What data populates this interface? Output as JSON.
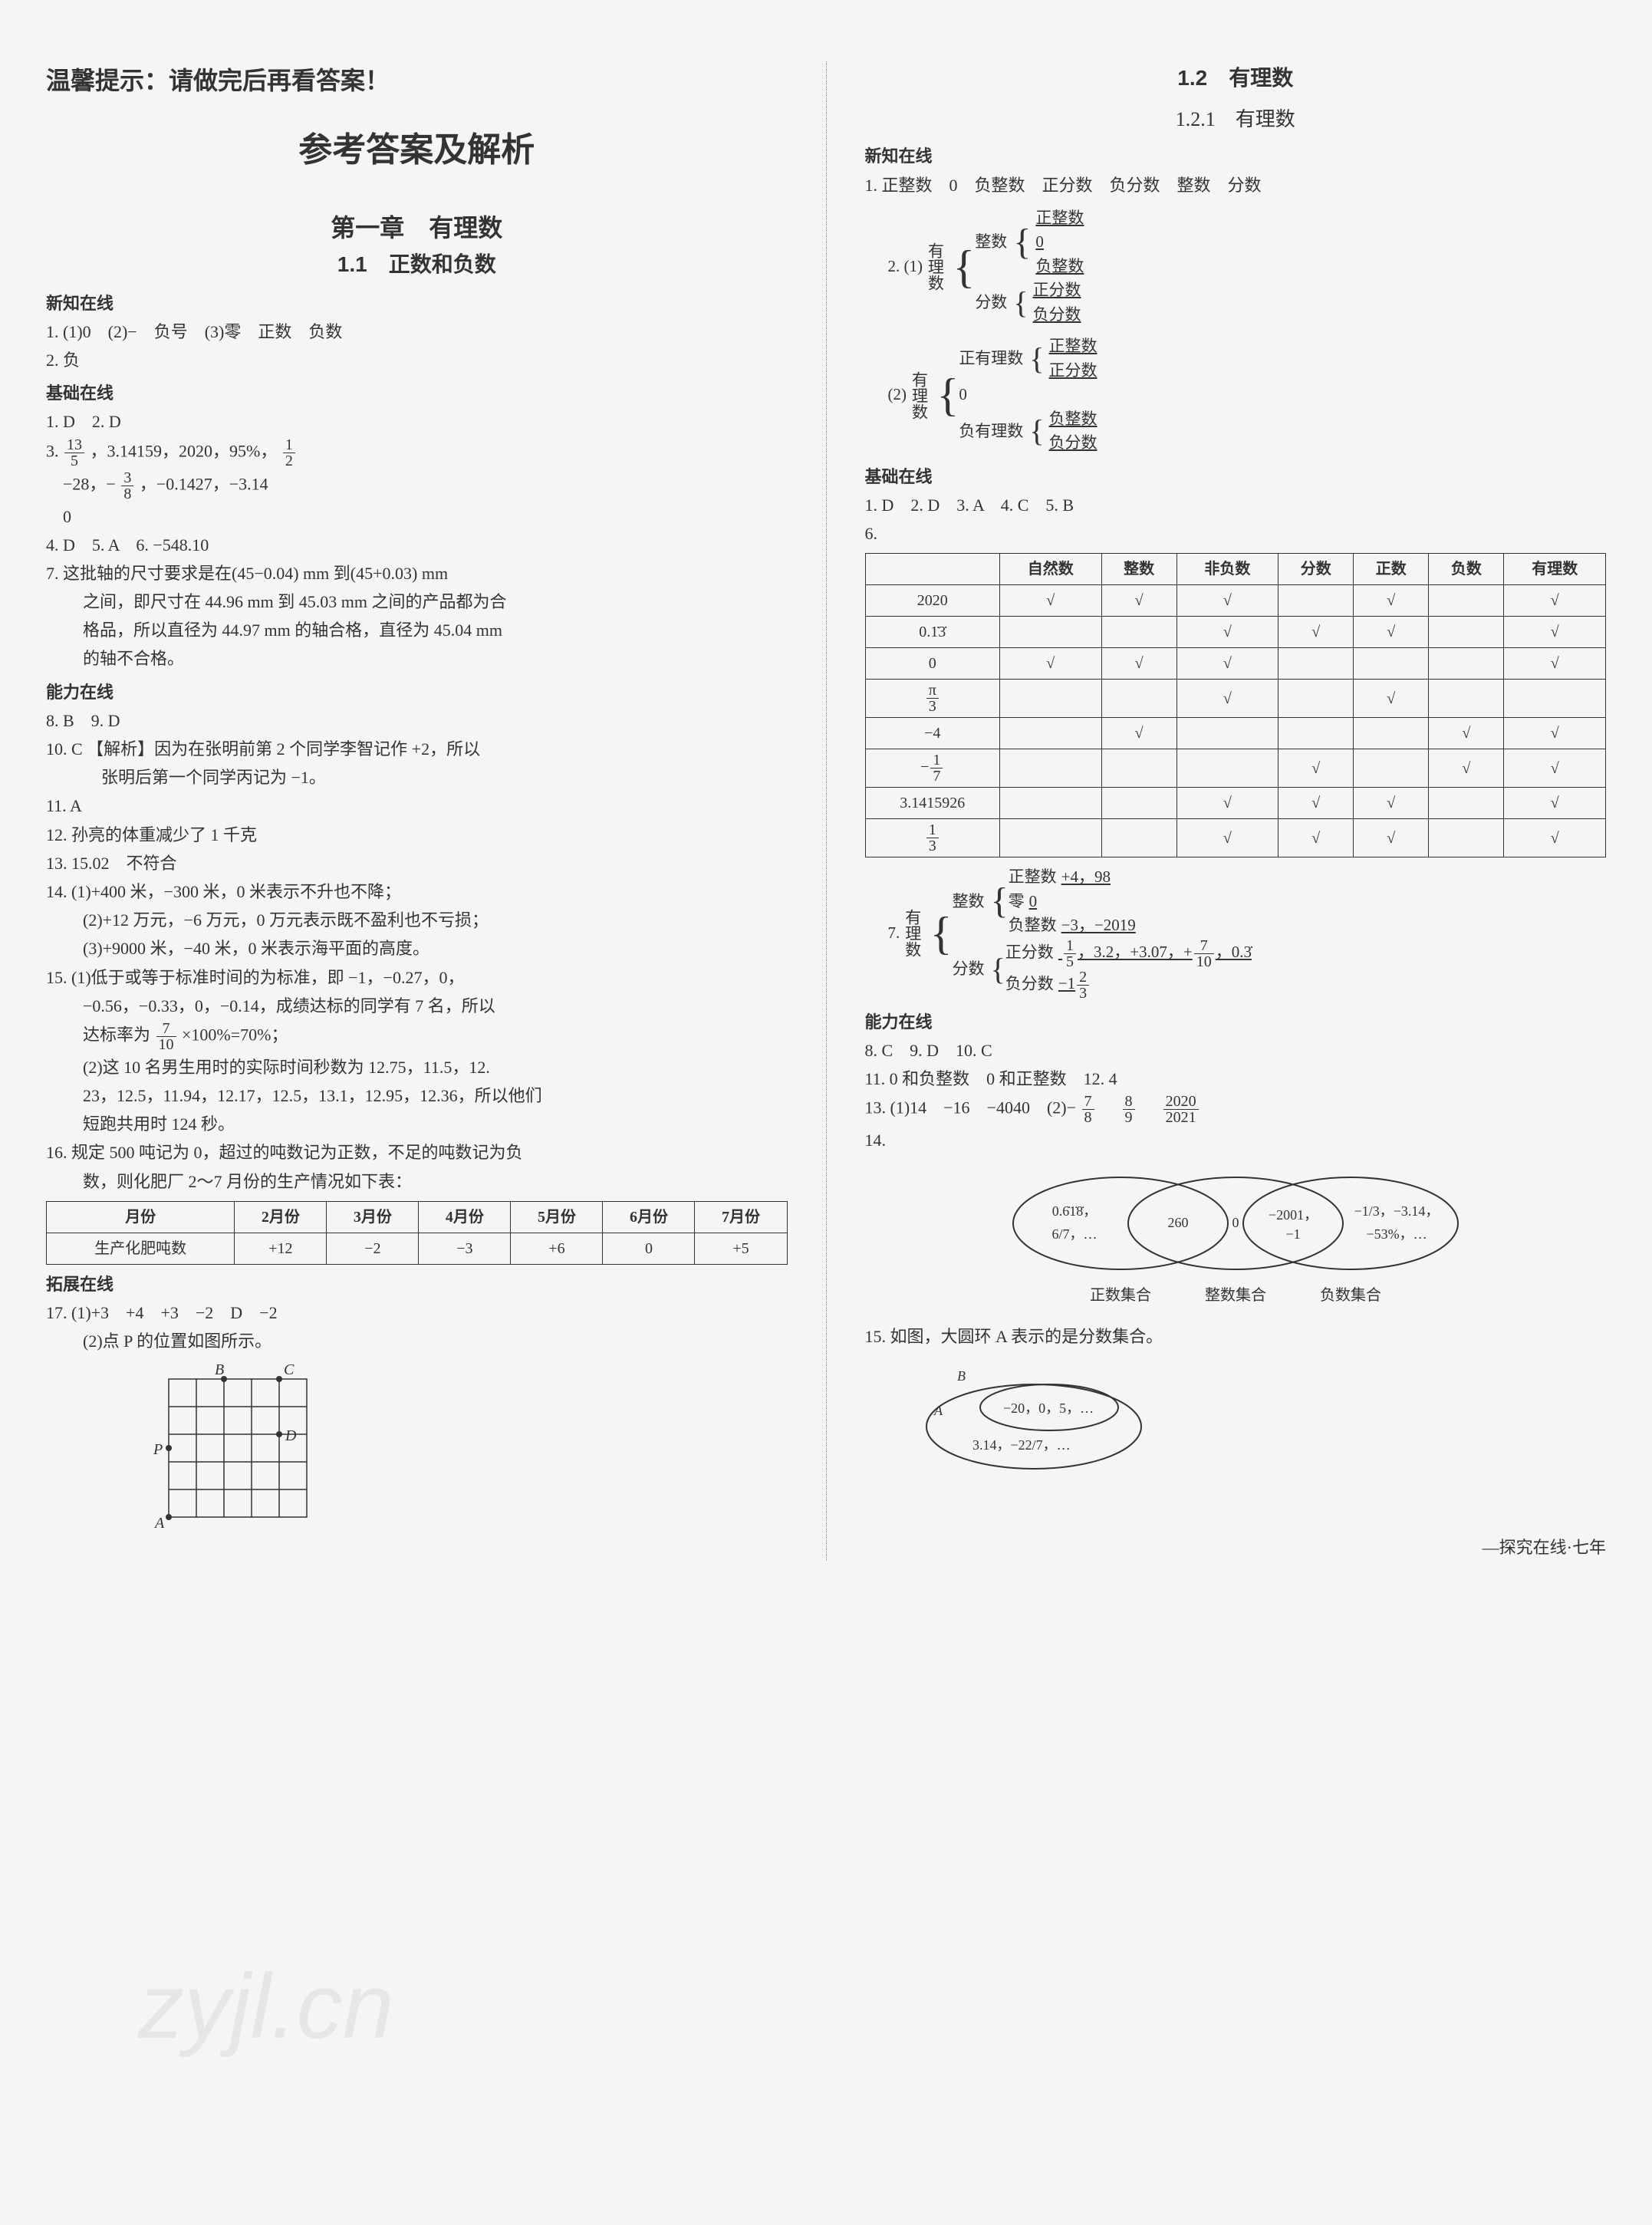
{
  "warning": "温馨提示：请做完后再看答案！",
  "main_title": "参考答案及解析",
  "chapter": "第一章　有理数",
  "section_1_1": "1.1　正数和负数",
  "left": {
    "h_xinzhi": "新知在线",
    "l1": "1. (1)0　(2)−　负号　(3)零　正数　负数",
    "l2": "2. 负",
    "h_jichu": "基础在线",
    "l3": "1. D　2. D",
    "l3b_prefix": "3. ",
    "l3b_rest": "，3.14159，2020，95%，",
    "l3c_prefix": "　−28，−",
    "l3c_rest": "，−0.1427，−3.14",
    "l3d": "　0",
    "l4": "4. D　5. A　6. −548.10",
    "l7a": "7. 这批轴的尺寸要求是在(45−0.04) mm 到(45+0.03) mm",
    "l7b": "之间，即尺寸在 44.96 mm 到 45.03 mm 之间的产品都为合",
    "l7c": "格品，所以直径为 44.97 mm 的轴合格，直径为 45.04 mm",
    "l7d": "的轴不合格。",
    "h_nengli": "能力在线",
    "l8": "8. B　9. D",
    "l10a": "10. C 【解析】因为在张明前第 2 个同学李智记作 +2，所以",
    "l10b": "张明后第一个同学丙记为 −1。",
    "l11": "11. A",
    "l12": "12. 孙亮的体重减少了 1 千克",
    "l13": "13. 15.02　不符合",
    "l14a": "14. (1)+400 米，−300 米，0 米表示不升也不降；",
    "l14b": "(2)+12 万元，−6 万元，0 万元表示既不盈利也不亏损；",
    "l14c": "(3)+9000 米，−40 米，0 米表示海平面的高度。",
    "l15a": "15. (1)低于或等于标准时间的为标准，即 −1，−0.27，0，",
    "l15b": "−0.56，−0.33，0，−0.14，成绩达标的同学有 7 名，所以",
    "l15c_prefix": "达标率为",
    "l15c_rest": "×100%=70%；",
    "l15d": "(2)这 10 名男生用时的实际时间秒数为 12.75，11.5，12.",
    "l15e": "23，12.5，11.94，12.17，12.5，13.1，12.95，12.36，所以他们",
    "l15f": "短跑共用时 124 秒。",
    "l16a": "16. 规定 500 吨记为 0，超过的吨数记为正数，不足的吨数记为负",
    "l16b": "数，则化肥厂 2～7 月份的生产情况如下表：",
    "table16": {
      "headers": [
        "月份",
        "2月份",
        "3月份",
        "4月份",
        "5月份",
        "6月份",
        "7月份"
      ],
      "row_label": "生产化肥吨数",
      "values": [
        "+12",
        "−2",
        "−3",
        "+6",
        "0",
        "+5"
      ]
    },
    "h_tuozhan": "拓展在线",
    "l17a": "17. (1)+3　+4　+3　−2　D　−2",
    "l17b": "(2)点 P 的位置如图所示。",
    "grid_labels": {
      "A": "A",
      "B": "B",
      "C": "C",
      "D": "D",
      "P": "P"
    }
  },
  "right": {
    "section_1_2": "1.2　有理数",
    "subsection": "1.2.1　有理数",
    "h_xinzhi": "新知在线",
    "l1": "1. 正整数　0　负整数　正分数　负分数　整数　分数",
    "tree2_prefix": "2. (1)",
    "tree2": {
      "root": "有理数",
      "b1": "整数",
      "b1a": "正整数",
      "b1b": "0",
      "b1c": "负整数",
      "b2": "分数",
      "b2a": "正分数",
      "b2b": "负分数"
    },
    "tree2b_prefix": "(2)",
    "tree2b": {
      "root": "有理数",
      "b1": "正有理数",
      "b1a": "正整数",
      "b1b": "正分数",
      "b2": "0",
      "b3": "负有理数",
      "b3a": "负整数",
      "b3b": "负分数"
    },
    "h_jichu": "基础在线",
    "l_jichu1": "1. D　2. D　3. A　4. C　5. B",
    "l6": "6.",
    "table6": {
      "headers": [
        "",
        "自然数",
        "整数",
        "非负数",
        "分数",
        "正数",
        "负数",
        "有理数"
      ],
      "rows": [
        {
          "label": "2020",
          "cells": [
            "√",
            "√",
            "√",
            "",
            "√",
            "",
            "√"
          ]
        },
        {
          "label": "0.1̇3̇",
          "cells": [
            "",
            "",
            "√",
            "√",
            "√",
            "",
            "√"
          ]
        },
        {
          "label": "0",
          "cells": [
            "√",
            "√",
            "√",
            "",
            "",
            "",
            "√"
          ]
        },
        {
          "label": "π/3",
          "cells": [
            "",
            "",
            "√",
            "",
            "√",
            "",
            ""
          ]
        },
        {
          "label": "−4",
          "cells": [
            "",
            "√",
            "",
            "",
            "",
            "√",
            "√"
          ]
        },
        {
          "label": "−1/7",
          "cells": [
            "",
            "",
            "",
            "√",
            "",
            "√",
            "√"
          ]
        },
        {
          "label": "3.1415926",
          "cells": [
            "",
            "",
            "√",
            "√",
            "√",
            "",
            "√"
          ]
        },
        {
          "label": "1/3",
          "cells": [
            "",
            "",
            "√",
            "√",
            "√",
            "",
            "√"
          ]
        }
      ]
    },
    "tree7_prefix": "7. ",
    "tree7": {
      "root": "有理数",
      "b1": "整数",
      "b1a_label": "正整数",
      "b1a_val": "+4，98",
      "b1b_label": "零",
      "b1b_val": "0",
      "b1c_label": "负整数",
      "b1c_val": "−3，−2019",
      "b2": "分数",
      "b2a_label": "正分数",
      "b2a_val": "1/5，3.2，+3.07，+7/10，0.3̇",
      "b2b_label": "负分数",
      "b2b_val": "−1 2/3"
    },
    "h_nengli": "能力在线",
    "l_nl1": "8. C　9. D　10. C",
    "l_nl2": "11. 0 和负整数　0 和正整数　12. 4",
    "l13_prefix": "13. (1)14　−16　−4040　(2)−",
    "l13_mid": "　",
    "l13_end": "　",
    "l14": "14.",
    "venn": {
      "left_items": "0.6̇1̇8̇，6/7，…",
      "mid1": "260",
      "mid2": "0",
      "mid3": "−2001，−1",
      "right_items": "−1/3，−3.14，−53%，…",
      "lbl_left": "正数集合",
      "lbl_mid": "整数集合",
      "lbl_right": "负数集合"
    },
    "l15": "15. 如图，大圆环 A 表示的是分数集合。",
    "fig15": {
      "A": "A",
      "B": "B",
      "b_items": "−20，0，5，…",
      "a_items": "3.14，−22/7，…"
    }
  },
  "footer": "—探究在线·七年",
  "watermark": "zyjl.cn"
}
